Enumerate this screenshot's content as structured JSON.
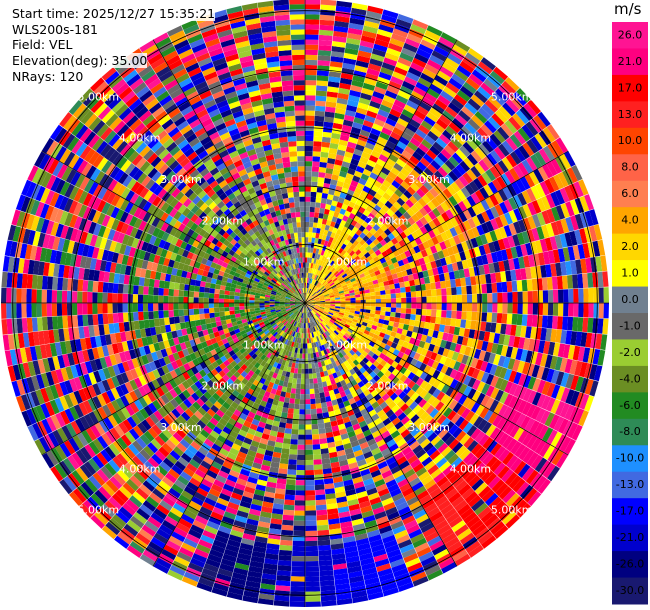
{
  "header": {
    "start_time": "Start time: 2025/12/27 15:35:21",
    "instrument": "WLS200s-181",
    "field": "Field: VEL",
    "elevation": "Elevation(deg): 35.00",
    "nrays": "NRays: 120"
  },
  "colorbar": {
    "unit": "m/s",
    "ticks": [
      "26.0",
      "21.0",
      "17.0",
      "13.0",
      "10.0",
      "8.0",
      "6.0",
      "4.0",
      "2.0",
      "1.0",
      "0.0",
      "-1.0",
      "-2.0",
      "-4.0",
      "-6.0",
      "-8.0",
      "-10.0",
      "-13.0",
      "-17.0",
      "-21.0",
      "-26.0",
      "-30.0"
    ],
    "colors": [
      "#ff1493",
      "#ff0080",
      "#ff0000",
      "#ff2020",
      "#ff4500",
      "#ff6347",
      "#ff7f50",
      "#ffa500",
      "#ffd700",
      "#ffff00",
      "#708090",
      "#696969",
      "#9acd32",
      "#6b8e23",
      "#228b22",
      "#2e8b57",
      "#1e90ff",
      "#4169e1",
      "#0000ff",
      "#0000cd",
      "#000080",
      "#191970"
    ]
  },
  "chart_data": {
    "type": "heatmap",
    "subtype": "polar-ppi",
    "field": "VEL",
    "units": "m/s",
    "nrays": 120,
    "elevation_deg": 35.0,
    "range_rings_km": [
      1.0,
      2.0,
      3.0,
      4.0,
      5.0
    ],
    "ring_labels": [
      "1.00km",
      "2.00km",
      "3.00km",
      "4.00km",
      "5.00km"
    ],
    "max_range_km": 5.2,
    "vmin": -30.0,
    "vmax": 30.0,
    "pattern": "noisy velocities beyond ~3 km; near-range positive (yellow/orange) to the east and south-east, negative (green) to the west; strong positive (red/orange) toward south-east, strong negative (blue) toward south"
  }
}
